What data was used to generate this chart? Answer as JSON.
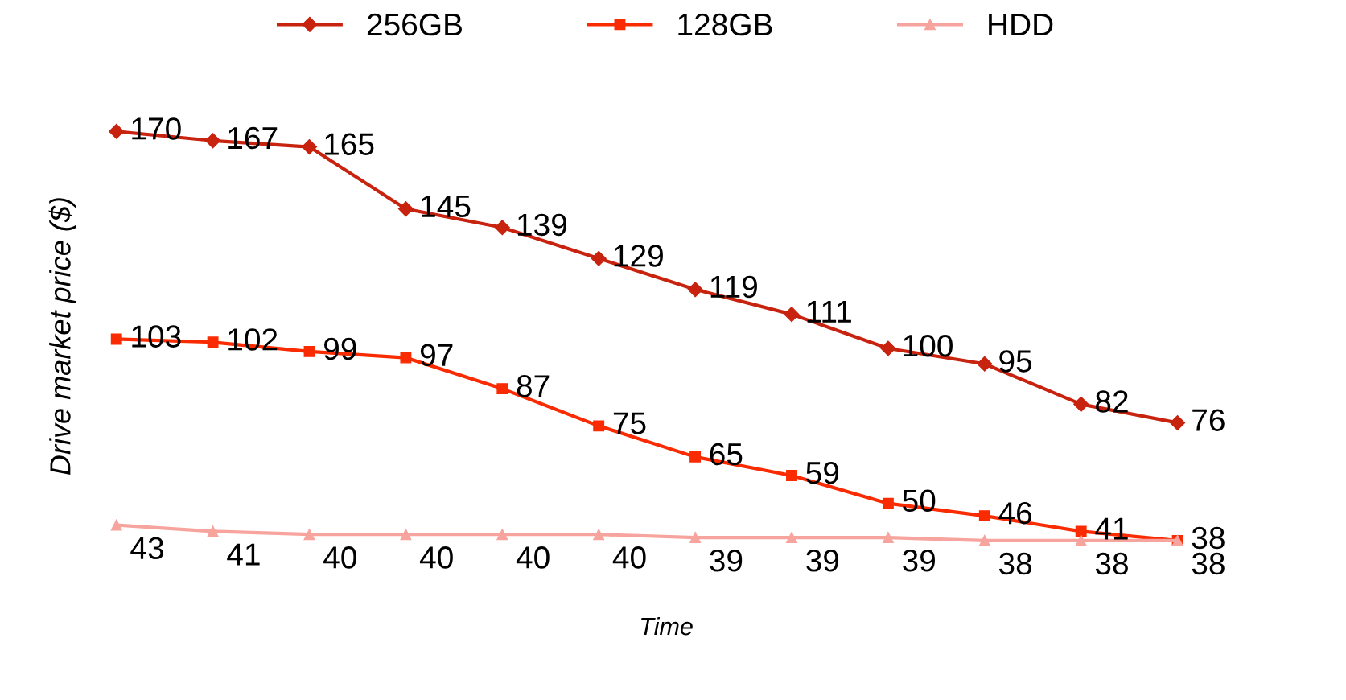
{
  "chart_data": {
    "type": "line",
    "xlabel": "Time",
    "ylabel": "Drive market price ($)",
    "categories": [
      null,
      null,
      null,
      null,
      null,
      null,
      null,
      null,
      null,
      null,
      null,
      null
    ],
    "series": [
      {
        "name": "256GB",
        "color": "#c8230f",
        "marker": "diamond",
        "values": [
          170,
          167,
          165,
          145,
          139,
          129,
          119,
          111,
          100,
          95,
          82,
          76
        ]
      },
      {
        "name": "128GB",
        "color": "#fa2b00",
        "marker": "square",
        "values": [
          103,
          102,
          99,
          97,
          87,
          75,
          65,
          59,
          50,
          46,
          41,
          38
        ]
      },
      {
        "name": "HDD",
        "color": "#f8a49e",
        "marker": "triangle",
        "values": [
          43,
          41,
          40,
          40,
          40,
          40,
          39,
          39,
          39,
          38,
          38,
          38
        ]
      }
    ],
    "data_labels": true,
    "legend": "top",
    "grid": false,
    "line_style": "solid"
  }
}
